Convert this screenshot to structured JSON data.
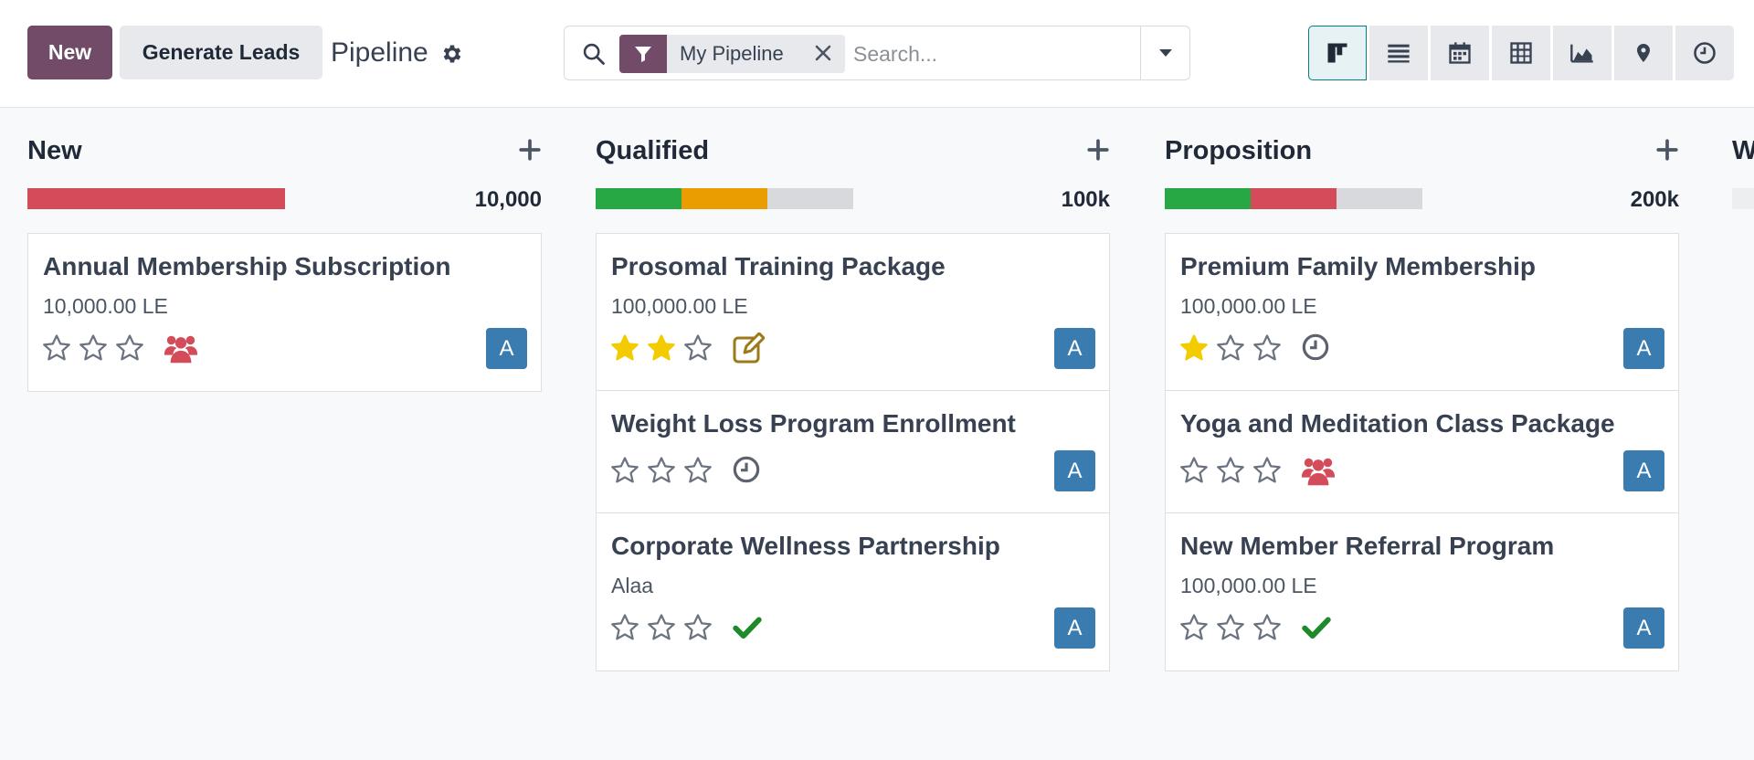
{
  "toolbar": {
    "new_label": "New",
    "generate_label": "Generate Leads",
    "title": "Pipeline"
  },
  "search": {
    "facet_label": "My Pipeline",
    "placeholder": "Search..."
  },
  "views": [
    "kanban-icon",
    "list-icon",
    "calendar-icon",
    "pivot-icon",
    "graph-icon",
    "map-icon",
    "activity-icon"
  ],
  "colors": {
    "primary": "#714b67",
    "success": "#28a745",
    "warning": "#e99d00",
    "danger": "#d44c59",
    "avatar": "#3a7cb0",
    "star": "#f3cc00"
  },
  "columns": [
    {
      "title": "New",
      "total": "10,000",
      "progress": [
        {
          "status": "danger",
          "fraction": 1.0
        }
      ],
      "cards": [
        {
          "title": "Annual Membership Subscription",
          "subtitle": "10,000.00 LE",
          "stars": 0,
          "activity": "meeting-icon",
          "avatar": "A"
        }
      ]
    },
    {
      "title": "Qualified",
      "total": "100k",
      "progress": [
        {
          "status": "success",
          "fraction": 0.333
        },
        {
          "status": "warning",
          "fraction": 0.333
        }
      ],
      "cards": [
        {
          "title": "Prosomal Training Package",
          "subtitle": "100,000.00 LE",
          "stars": 2,
          "activity": "edit-icon",
          "avatar": "A"
        },
        {
          "title": "Weight Loss Program Enrollment",
          "subtitle": "",
          "stars": 0,
          "activity": "clock-icon",
          "avatar": "A"
        },
        {
          "title": "Corporate Wellness Partnership",
          "subtitle": "Alaa",
          "stars": 0,
          "activity": "check-icon",
          "avatar": "A"
        }
      ]
    },
    {
      "title": "Proposition",
      "total": "200k",
      "progress": [
        {
          "status": "success",
          "fraction": 0.333
        },
        {
          "status": "danger",
          "fraction": 0.333
        }
      ],
      "cards": [
        {
          "title": "Premium Family Membership",
          "subtitle": "100,000.00 LE",
          "stars": 1,
          "activity": "clock-icon",
          "avatar": "A"
        },
        {
          "title": "Yoga and Meditation Class Package",
          "subtitle": "",
          "stars": 0,
          "activity": "meeting-icon",
          "avatar": "A"
        },
        {
          "title": "New Member Referral Program",
          "subtitle": "100,000.00 LE",
          "stars": 0,
          "activity": "check-icon",
          "avatar": "A"
        }
      ]
    }
  ],
  "next_column": {
    "title": "W"
  }
}
